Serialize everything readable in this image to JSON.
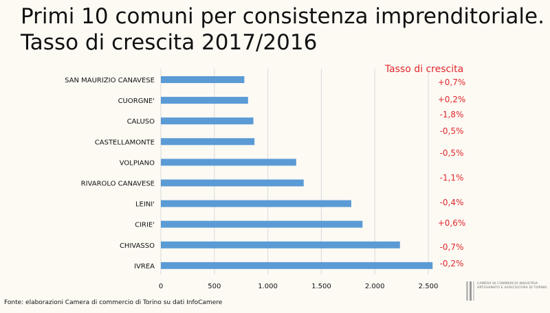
{
  "title_line1": "Primi 10 comuni per consistenza imprenditoriale.",
  "title_line2": "Tasso di crescita 2017/2016",
  "footer": "Fonte: elaborazioni Camera di commercio di Torino su dati InfoCamere",
  "logo_text": "CAMERA DI COMMERCIO INDUSTRIA ARTIGIANATO E AGRICOLTURA DI TORINO",
  "colors": {
    "bar": "#5b9bd5",
    "grid": "#d9d9d9",
    "rate": "#e1262b"
  },
  "chart_data": {
    "type": "bar",
    "orientation": "horizontal",
    "categories": [
      "SAN MAURIZIO CANAVESE",
      "CUORGNE'",
      "CALUSO",
      "CASTELLAMONTE",
      "VOLPIANO",
      "RIVAROLO CANAVESE",
      "LEINI'",
      "CIRIE'",
      "CHIVASSO",
      "IVREA"
    ],
    "values": [
      780,
      815,
      865,
      875,
      1265,
      1335,
      1780,
      1885,
      2235,
      2540
    ],
    "xlim": [
      0,
      2500
    ],
    "xticks": [
      "0",
      "500",
      "1.000",
      "1.500",
      "2.000",
      "2.500"
    ],
    "grid": true,
    "rate_header": "Tasso di crescita",
    "rates": [
      "+0,7%",
      "+0,2%",
      "-1,8%",
      "-0,5%",
      "-0,5%",
      "-1,1%",
      "-0,4%",
      "+0,6%",
      "-0,7%",
      "-0,2%"
    ]
  }
}
